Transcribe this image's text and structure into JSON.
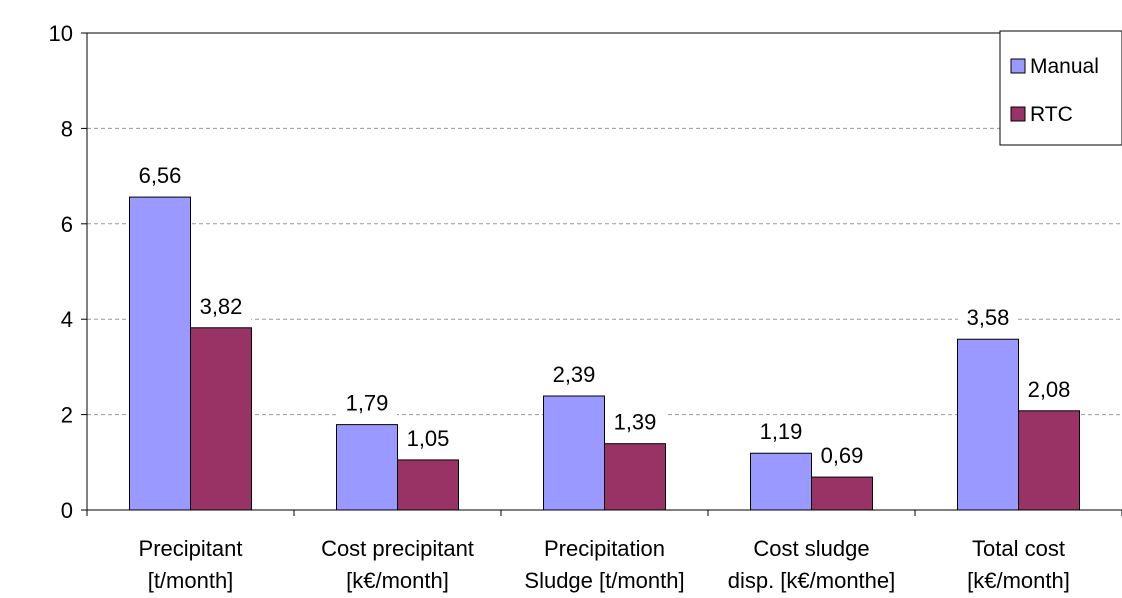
{
  "colors": {
    "manual": "#9999ff",
    "rtc": "#993366",
    "grid": "#999999",
    "axis": "#000000"
  },
  "chart_data": {
    "type": "bar",
    "categories": [
      [
        "Precipitant",
        "[t/month]"
      ],
      [
        "Cost precipitant",
        "[k€/month]"
      ],
      [
        "Precipitation",
        "Sludge [t/month]"
      ],
      [
        "Cost sludge",
        "disp. [k€/monthe]"
      ],
      [
        "Total cost",
        "[k€/month]"
      ]
    ],
    "series": [
      {
        "name": "Manual",
        "values": [
          6.56,
          1.79,
          2.39,
          1.19,
          3.58
        ],
        "labels": [
          "6,56",
          "1,79",
          "2,39",
          "1,19",
          "3,58"
        ]
      },
      {
        "name": "RTC",
        "values": [
          3.82,
          1.05,
          1.39,
          0.69,
          2.08
        ],
        "labels": [
          "3,82",
          "1,05",
          "1,39",
          "0,69",
          "2,08"
        ]
      }
    ],
    "ylim": [
      0,
      10
    ],
    "yticks": [
      0,
      2,
      4,
      6,
      8,
      10
    ],
    "grid": "horizontal dashed",
    "legend_position": "top-right"
  }
}
